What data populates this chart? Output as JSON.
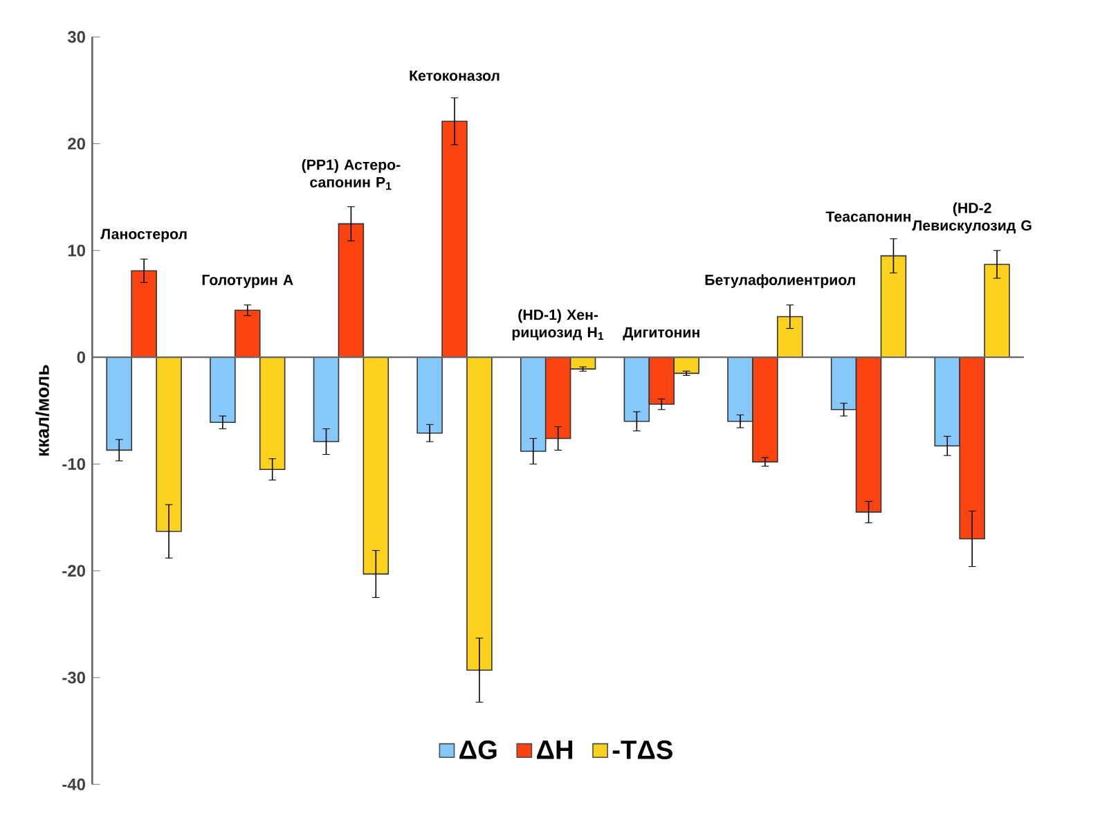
{
  "chart_data": {
    "type": "bar",
    "ylabel": "ккал/моль",
    "categories": [
      "Ланостерол",
      "Голотурин А",
      "(PP1) Астеро-сапонин P$_{1}$",
      "Кетоконазол",
      "(HD-1) Хен-рициозид H$_{1}$",
      "Дигитонин",
      "Бетулафолиентриол",
      "Теасапонин",
      "(HD-2 Левискулозид G"
    ],
    "series": [
      {
        "name": "ΔG",
        "color": "#87c8fa",
        "values": [
          -8.7,
          -6.1,
          -7.9,
          -7.1,
          -8.8,
          -6.0,
          -6.0,
          -4.9,
          -8.3
        ],
        "errors": [
          1.0,
          0.6,
          1.2,
          0.8,
          1.2,
          0.9,
          0.6,
          0.6,
          0.9
        ]
      },
      {
        "name": "ΔH",
        "color": "#fc4412",
        "values": [
          8.1,
          4.4,
          12.5,
          22.1,
          -7.6,
          -4.4,
          -9.8,
          -14.5,
          -17.0
        ],
        "errors": [
          1.1,
          0.5,
          1.6,
          2.2,
          1.1,
          0.5,
          0.4,
          1.0,
          2.6
        ]
      },
      {
        "name": "-TΔS",
        "color": "#fcd21f",
        "values": [
          -16.3,
          -10.5,
          -20.3,
          -29.3,
          -1.1,
          -1.5,
          3.8,
          9.5,
          8.7
        ],
        "errors": [
          2.5,
          1.0,
          2.2,
          3.0,
          0.2,
          0.2,
          1.1,
          1.6,
          1.3
        ]
      }
    ],
    "ylim": [
      -40,
      30
    ],
    "yticks": [
      -40,
      -30,
      -20,
      -10,
      0,
      10,
      20,
      30
    ],
    "legend": "bottom"
  }
}
